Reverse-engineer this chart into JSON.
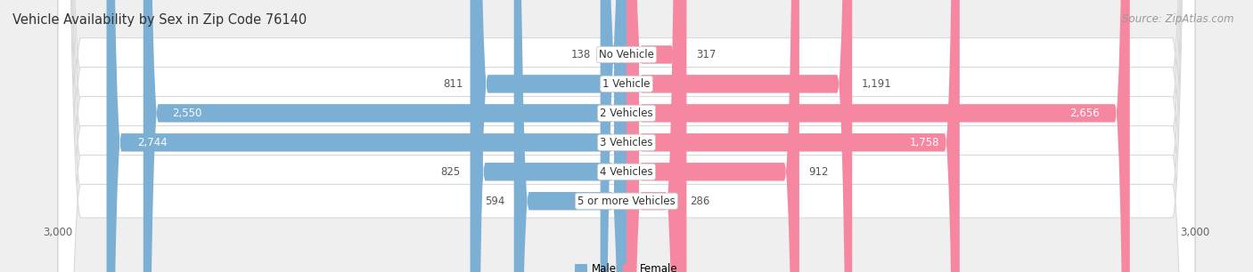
{
  "title": "Vehicle Availability by Sex in Zip Code 76140",
  "source": "Source: ZipAtlas.com",
  "categories": [
    "No Vehicle",
    "1 Vehicle",
    "2 Vehicles",
    "3 Vehicles",
    "4 Vehicles",
    "5 or more Vehicles"
  ],
  "male_values": [
    138,
    811,
    2550,
    2744,
    825,
    594
  ],
  "female_values": [
    317,
    1191,
    2656,
    1758,
    912,
    286
  ],
  "male_color": "#7bafd4",
  "female_color": "#f588a0",
  "male_label": "Male",
  "female_label": "Female",
  "xlim": 3000,
  "background_color": "#efefef",
  "row_bg_color": "#ffffff",
  "row_border_color": "#d8d8d8",
  "title_fontsize": 10.5,
  "source_fontsize": 8.5,
  "value_fontsize": 8.5,
  "cat_fontsize": 8.5,
  "bar_height": 0.62,
  "inner_label_threshold": 1200
}
